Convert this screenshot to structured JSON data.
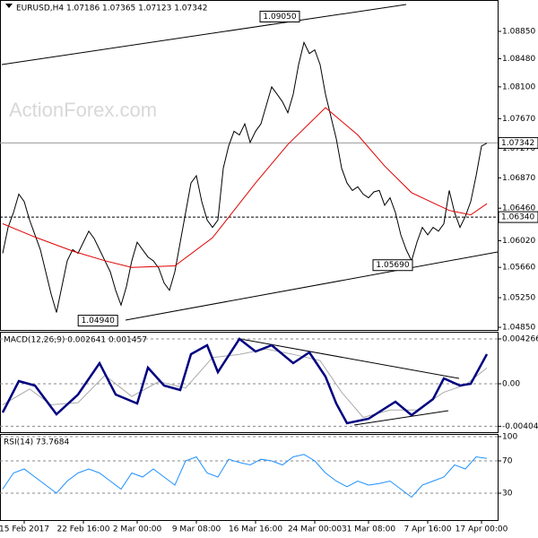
{
  "watermark": "ActionForex.com",
  "chart_data": [
    {
      "type": "line",
      "title": "EURUSD,H4  1.07186 1.07365 1.07123 1.07342",
      "xlim": [
        -0.5,
        92
      ],
      "ylim": [
        1.04814,
        1.09274
      ],
      "yticks": [
        {
          "value": 1.0885,
          "label": "1.08850"
        },
        {
          "value": 1.0848,
          "label": "1.08480"
        },
        {
          "value": 1.081,
          "label": "1.08100"
        },
        {
          "value": 1.0767,
          "label": "1.07670"
        },
        {
          "value": 1.0727,
          "label": "1.07270"
        },
        {
          "value": 1.0687,
          "label": "1.06870"
        },
        {
          "value": 1.0646,
          "label": "1.06460"
        },
        {
          "value": 1.0602,
          "label": "1.06020"
        },
        {
          "value": 1.0566,
          "label": "1.05660"
        },
        {
          "value": 1.0525,
          "label": "1.05250"
        },
        {
          "value": 1.0485,
          "label": "1.04850"
        }
      ],
      "x": [
        0,
        1,
        2,
        3,
        4,
        5,
        6,
        7,
        8,
        9,
        10,
        11,
        12,
        13,
        14,
        15,
        16,
        17,
        18,
        19,
        20,
        21,
        22,
        23,
        24,
        25,
        26,
        27,
        28,
        29,
        30,
        31,
        32,
        33,
        34,
        35,
        36,
        37,
        38,
        39,
        40,
        41,
        42,
        43,
        44,
        45,
        46,
        47,
        48,
        49,
        50,
        51,
        52,
        53,
        54,
        55,
        56,
        57,
        58,
        59,
        60,
        61,
        62,
        63,
        64,
        65,
        66,
        67,
        68,
        69,
        70,
        71,
        72,
        73,
        74,
        75,
        76,
        77,
        78,
        79,
        80,
        81,
        82,
        83,
        84,
        85,
        86,
        87,
        88,
        89,
        90
      ],
      "series": [
        {
          "color": "#000000",
          "values": [
            1.0585,
            1.062,
            1.064,
            1.0665,
            1.0655,
            1.063,
            1.061,
            1.059,
            1.056,
            1.053,
            1.0505,
            1.054,
            1.0575,
            1.059,
            1.0585,
            1.06,
            1.0615,
            1.0605,
            1.059,
            1.0575,
            1.056,
            1.0535,
            1.0515,
            1.054,
            1.0575,
            1.06,
            1.059,
            1.058,
            1.0575,
            1.0565,
            1.0545,
            1.0535,
            1.056,
            1.06,
            1.064,
            1.068,
            1.069,
            1.0655,
            1.063,
            1.062,
            1.063,
            1.07,
            1.073,
            1.075,
            1.0745,
            1.076,
            1.0735,
            1.075,
            1.076,
            1.0785,
            1.081,
            1.08,
            1.079,
            1.0775,
            1.08,
            1.084,
            1.087,
            1.0855,
            1.086,
            1.084,
            1.08,
            1.077,
            1.074,
            1.07,
            1.068,
            1.067,
            1.0675,
            1.0665,
            1.066,
            1.0668,
            1.067,
            1.065,
            1.066,
            1.064,
            1.061,
            1.059,
            1.0575,
            1.06,
            1.062,
            1.061,
            1.062,
            1.0615,
            1.0625,
            1.067,
            1.064,
            1.062,
            1.0635,
            1.0655,
            1.069,
            1.073,
            1.0734
          ]
        },
        {
          "color": "#e00000",
          "x": [
            0,
            6,
            13,
            19,
            24,
            32,
            39,
            47,
            53,
            60,
            66,
            71,
            76,
            83,
            87,
            90
          ],
          "values": [
            1.0625,
            1.0607,
            1.0588,
            1.0575,
            1.0566,
            1.0568,
            1.0606,
            1.068,
            1.0732,
            1.0782,
            1.0745,
            1.0703,
            1.0667,
            1.0643,
            1.0637,
            1.0652
          ]
        }
      ],
      "levels": [
        {
          "value": 1.07342,
          "label": "1.07342",
          "style": "solid"
        },
        {
          "value": 1.0634,
          "label": "1.06340",
          "style": "dashed"
        }
      ],
      "annotations": [
        {
          "x": 51.5,
          "value": 1.0905,
          "label": "1.09050"
        },
        {
          "x": 72.5,
          "value": 1.0569,
          "label": "1.05690"
        },
        {
          "x": 17.7,
          "value": 1.0494,
          "label": "1.04940"
        }
      ]
    },
    {
      "type": "line",
      "title": "MACD(12,26,9) 0.002641 0.001457",
      "xlim": [
        -0.5,
        92
      ],
      "ylim": [
        -0.004607,
        0.004949
      ],
      "yticks": [
        0.004266,
        {
          "value": 0,
          "label": "0.00"
        },
        -0.004045
      ],
      "dashed_ticks": true,
      "series": [
        {
          "color": "#aaaaaa",
          "x": [
            0,
            5,
            9,
            14,
            19,
            24,
            29,
            34,
            39,
            44,
            49,
            54,
            59,
            63,
            67,
            72,
            77,
            82,
            86,
            90
          ],
          "values": [
            -0.002,
            -0.0005,
            -0.002,
            -0.0018,
            0.0008,
            -0.0012,
            0.0002,
            -0.0004,
            0.0025,
            0.0028,
            0.0033,
            0.0028,
            0.0022,
            -0.0008,
            -0.0032,
            -0.0025,
            -0.0025,
            -0.0008,
            -0.0001,
            0.0015
          ]
        },
        {
          "color": "#000080",
          "width": 2.5,
          "x": [
            0,
            3,
            6,
            10,
            14,
            18,
            21,
            25,
            27,
            30,
            33,
            35,
            38,
            40,
            44,
            47,
            50,
            54,
            57,
            60,
            62,
            64,
            68,
            73,
            76,
            80,
            82,
            85,
            87,
            90
          ],
          "values": [
            -0.00273,
            0.00026,
            -0.00017,
            -0.0029,
            -0.00102,
            0.00196,
            -0.00102,
            -0.00188,
            0.00154,
            -0.00017,
            -0.0006,
            0.00282,
            0.00367,
            0.00111,
            0.00427,
            0.00307,
            0.00367,
            0.00196,
            0.00299,
            0.00068,
            -0.00188,
            -0.00375,
            -0.00333,
            -0.00171,
            -0.00299,
            -0.00145,
            0.00051,
            -0.00017,
            0,
            0.00282
          ]
        }
      ]
    },
    {
      "type": "line",
      "title": "RSI(14) 73.7684",
      "xlim": [
        -0.5,
        92
      ],
      "ylim": [
        -3.3,
        103.3
      ],
      "yticks": [
        100,
        70,
        30
      ],
      "dashed_ticks": true,
      "xticks": [
        {
          "value": 4,
          "label": "15 Feb 2017"
        },
        {
          "value": 15,
          "label": "22 Feb 16:00"
        },
        {
          "value": 25,
          "label": "2 Mar 00:00"
        },
        {
          "value": 36,
          "label": "9 Mar 08:00"
        },
        {
          "value": 47,
          "label": "16 Mar 16:00"
        },
        {
          "value": 58,
          "label": "24 Mar 00:00"
        },
        {
          "value": 68,
          "label": "31 Mar 08:00"
        },
        {
          "value": 79,
          "label": "7 Apr 16:00"
        },
        {
          "value": 89,
          "label": "17 Apr 00:00"
        }
      ],
      "series": [
        {
          "color": "#1e90ff",
          "x": [
            0,
            2,
            4,
            6,
            8,
            10,
            12,
            14,
            16,
            18,
            20,
            22,
            24,
            26,
            28,
            30,
            32,
            34,
            36,
            38,
            40,
            42,
            44,
            46,
            48,
            50,
            52,
            54,
            56,
            58,
            60,
            62,
            64,
            66,
            68,
            70,
            72,
            74,
            76,
            78,
            80,
            82,
            84,
            86,
            88,
            90
          ],
          "values": [
            35,
            55,
            60,
            50,
            40,
            30,
            45,
            55,
            60,
            55,
            45,
            35,
            55,
            50,
            60,
            50,
            40,
            70,
            75,
            55,
            50,
            72,
            68,
            65,
            72,
            70,
            65,
            75,
            78,
            70,
            55,
            45,
            38,
            45,
            40,
            42,
            45,
            35,
            25,
            40,
            45,
            50,
            65,
            60,
            75,
            73
          ]
        }
      ]
    }
  ]
}
